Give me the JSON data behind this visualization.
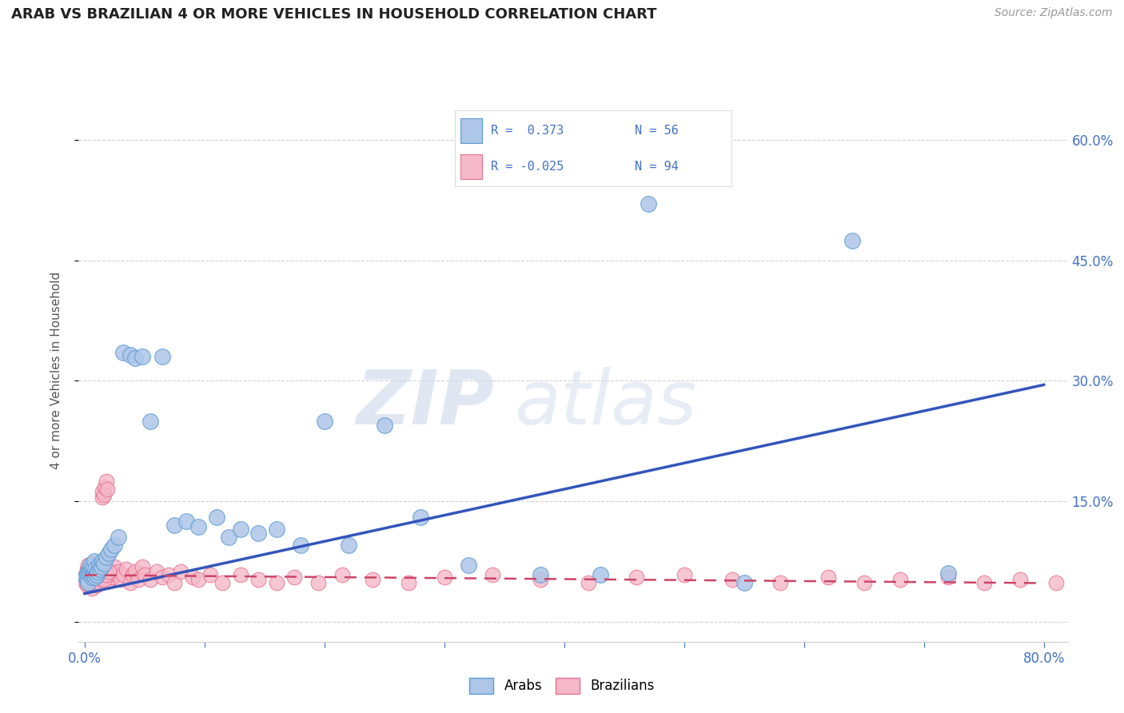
{
  "title": "ARAB VS BRAZILIAN 4 OR MORE VEHICLES IN HOUSEHOLD CORRELATION CHART",
  "source_text": "Source: ZipAtlas.com",
  "ylabel": "4 or more Vehicles in Household",
  "xlim": [
    -0.005,
    0.82
  ],
  "ylim": [
    -0.025,
    0.65
  ],
  "xtick_positions": [
    0.0,
    0.1,
    0.2,
    0.3,
    0.4,
    0.5,
    0.6,
    0.7,
    0.8
  ],
  "xticklabels": [
    "0.0%",
    "",
    "",
    "",
    "",
    "",
    "",
    "",
    "80.0%"
  ],
  "ytick_positions": [
    0.0,
    0.15,
    0.3,
    0.45,
    0.6
  ],
  "ytick_labels_right": [
    "",
    "15.0%",
    "30.0%",
    "45.0%",
    "60.0%"
  ],
  "grid_color": "#cccccc",
  "background_color": "#ffffff",
  "arab_color": "#aec6e8",
  "arab_edge_color": "#5b9bd5",
  "brazilian_color": "#f4b8c8",
  "brazilian_edge_color": "#e87090",
  "arab_line_color": "#3355bb",
  "brazilian_line_color": "#cc4466",
  "arab_R": 0.373,
  "arab_N": 56,
  "brazilian_R": -0.025,
  "brazilian_N": 94,
  "watermark_zip": "ZIP",
  "watermark_atlas": "atlas",
  "title_color": "#222222",
  "axis_label_color": "#555555",
  "tick_label_color": "#4472C4",
  "legend_text_color": "#4472C4",
  "arab_scatter_x": [
    0.001,
    0.002,
    0.002,
    0.003,
    0.003,
    0.004,
    0.004,
    0.005,
    0.005,
    0.006,
    0.006,
    0.007,
    0.007,
    0.008,
    0.008,
    0.009,
    0.009,
    0.01,
    0.01,
    0.011,
    0.012,
    0.013,
    0.014,
    0.015,
    0.016,
    0.018,
    0.02,
    0.022,
    0.025,
    0.028,
    0.032,
    0.038,
    0.042,
    0.048,
    0.055,
    0.065,
    0.075,
    0.085,
    0.095,
    0.11,
    0.12,
    0.13,
    0.145,
    0.16,
    0.18,
    0.2,
    0.22,
    0.25,
    0.28,
    0.32,
    0.38,
    0.43,
    0.47,
    0.55,
    0.64,
    0.72
  ],
  "arab_scatter_y": [
    0.055,
    0.06,
    0.052,
    0.058,
    0.048,
    0.065,
    0.062,
    0.058,
    0.07,
    0.055,
    0.065,
    0.058,
    0.068,
    0.06,
    0.075,
    0.055,
    0.065,
    0.06,
    0.058,
    0.062,
    0.07,
    0.065,
    0.068,
    0.075,
    0.072,
    0.08,
    0.085,
    0.09,
    0.095,
    0.105,
    0.335,
    0.332,
    0.328,
    0.33,
    0.25,
    0.33,
    0.12,
    0.125,
    0.118,
    0.13,
    0.105,
    0.115,
    0.11,
    0.115,
    0.095,
    0.25,
    0.095,
    0.245,
    0.13,
    0.07,
    0.058,
    0.058,
    0.52,
    0.048,
    0.475,
    0.06
  ],
  "brazilian_scatter_x": [
    0.001,
    0.001,
    0.002,
    0.002,
    0.002,
    0.003,
    0.003,
    0.003,
    0.004,
    0.004,
    0.004,
    0.005,
    0.005,
    0.005,
    0.006,
    0.006,
    0.006,
    0.007,
    0.007,
    0.007,
    0.008,
    0.008,
    0.009,
    0.009,
    0.01,
    0.01,
    0.01,
    0.011,
    0.011,
    0.012,
    0.012,
    0.013,
    0.013,
    0.014,
    0.014,
    0.015,
    0.015,
    0.016,
    0.017,
    0.018,
    0.019,
    0.02,
    0.021,
    0.022,
    0.023,
    0.025,
    0.027,
    0.028,
    0.03,
    0.032,
    0.035,
    0.038,
    0.04,
    0.042,
    0.045,
    0.048,
    0.05,
    0.055,
    0.06,
    0.065,
    0.07,
    0.075,
    0.08,
    0.09,
    0.095,
    0.105,
    0.115,
    0.13,
    0.145,
    0.16,
    0.175,
    0.195,
    0.215,
    0.24,
    0.27,
    0.3,
    0.34,
    0.38,
    0.42,
    0.46,
    0.5,
    0.54,
    0.58,
    0.62,
    0.65,
    0.68,
    0.72,
    0.75,
    0.78,
    0.81,
    0.015,
    0.016,
    0.018,
    0.02
  ],
  "brazilian_scatter_y": [
    0.048,
    0.058,
    0.045,
    0.055,
    0.065,
    0.05,
    0.06,
    0.07,
    0.045,
    0.055,
    0.065,
    0.048,
    0.058,
    0.068,
    0.042,
    0.052,
    0.072,
    0.048,
    0.058,
    0.068,
    0.052,
    0.062,
    0.048,
    0.058,
    0.045,
    0.055,
    0.065,
    0.048,
    0.058,
    0.052,
    0.062,
    0.048,
    0.058,
    0.052,
    0.062,
    0.155,
    0.162,
    0.158,
    0.168,
    0.175,
    0.165,
    0.058,
    0.052,
    0.062,
    0.055,
    0.068,
    0.058,
    0.062,
    0.052,
    0.058,
    0.065,
    0.048,
    0.058,
    0.062,
    0.052,
    0.068,
    0.058,
    0.052,
    0.062,
    0.055,
    0.058,
    0.048,
    0.062,
    0.055,
    0.052,
    0.058,
    0.048,
    0.058,
    0.052,
    0.048,
    0.055,
    0.048,
    0.058,
    0.052,
    0.048,
    0.055,
    0.058,
    0.052,
    0.048,
    0.055,
    0.058,
    0.052,
    0.048,
    0.055,
    0.048,
    0.052,
    0.055,
    0.048,
    0.052,
    0.048,
    0.058,
    0.052,
    0.058,
    0.062
  ],
  "arab_line_x": [
    0.0,
    0.8
  ],
  "arab_line_y": [
    0.035,
    0.295
  ],
  "braz_line_x": [
    0.0,
    0.8
  ],
  "braz_line_y": [
    0.058,
    0.048
  ]
}
